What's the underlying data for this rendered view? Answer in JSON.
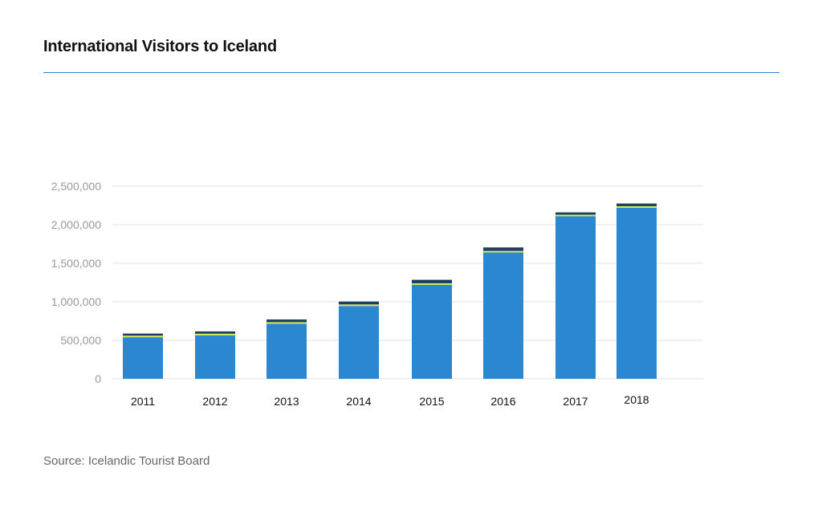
{
  "header": {
    "title": "International Visitors to Iceland"
  },
  "footer": {
    "source": "Source: Icelandic Tourist Board"
  },
  "colors": {
    "main": "#2a87d0",
    "accent_yellow": "#d9e84a",
    "accent_dark": "#1c3f63",
    "grid": "#e3e3e3",
    "axis_text": "#999999",
    "category_text": "#111111"
  },
  "chart_data": {
    "type": "bar",
    "stacked": true,
    "categories": [
      "2011",
      "2012",
      "2013",
      "2014",
      "2015",
      "2016",
      "2017",
      "2018"
    ],
    "series": [
      {
        "color": "#2a87d0",
        "values": [
          540000,
          565000,
          715000,
          945000,
          1220000,
          1640000,
          2110000,
          2220000
        ]
      },
      {
        "color": "#d9e84a",
        "values": [
          20000,
          20000,
          20000,
          20000,
          20000,
          20000,
          20000,
          20000
        ]
      },
      {
        "color": "#1c3f63",
        "values": [
          27000,
          30000,
          35000,
          38000,
          45000,
          45000,
          30000,
          35000
        ]
      }
    ],
    "yticks": [
      0,
      500000,
      1000000,
      1500000,
      2000000,
      2500000
    ],
    "ytick_labels": [
      "0",
      "500,000",
      "1,000,000",
      "1,500,000",
      "2,000,000",
      "2,500,000"
    ],
    "ylim": [
      0,
      2500000
    ],
    "grid": true,
    "legend": "none"
  }
}
